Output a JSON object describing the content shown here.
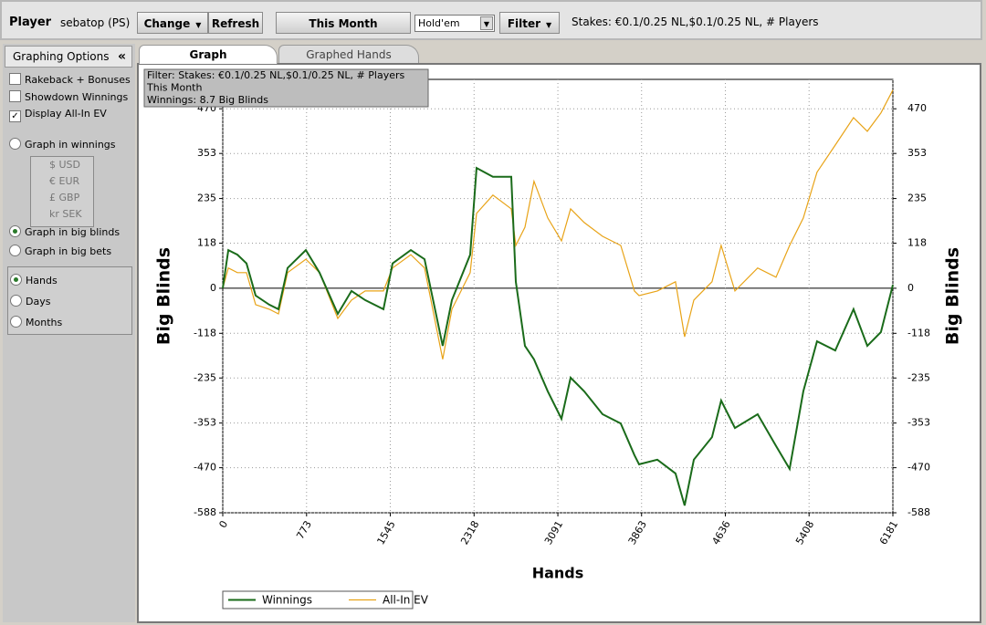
{
  "toolbar": {
    "player_label": "Player",
    "player": "sebatop (PS)",
    "change": "Change",
    "refresh": "Refresh",
    "period": "This Month",
    "game": "Hold'em",
    "filter": "Filter",
    "stakes": "Stakes: €0.1/0.25 NL,$0.1/0.25 NL, # Players"
  },
  "sidebar": {
    "title": "Graphing Options",
    "collapse": "«",
    "checkboxes": [
      {
        "label": "Rakeback + Bonuses",
        "checked": false
      },
      {
        "label": "Showdown Winnings",
        "checked": false
      },
      {
        "label": "Display All-In EV",
        "checked": true
      }
    ],
    "units": [
      {
        "label": "Graph in winnings",
        "checked": false
      },
      {
        "label": "Graph in big blinds",
        "checked": true
      },
      {
        "label": "Graph in big bets",
        "checked": false
      }
    ],
    "currencies": [
      "$ USD",
      "€ EUR",
      "£ GBP",
      "kr SEK"
    ],
    "axis_options": [
      {
        "label": "Hands",
        "checked": true
      },
      {
        "label": "Days",
        "checked": false
      },
      {
        "label": "Months",
        "checked": false
      }
    ]
  },
  "tabs": [
    {
      "label": "Graph",
      "active": true
    },
    {
      "label": "Graphed Hands",
      "active": false
    }
  ],
  "chart_data": {
    "type": "line",
    "annotation": [
      "Filter: Stakes: €0.1/0.25 NL,$0.1/0.25 NL, # Players",
      "This Month",
      "Winnings: 8.7 Big Blinds"
    ],
    "xlabel": "Hands",
    "ylabel": "Big Blinds",
    "y2label": "Big Blinds",
    "grid": true,
    "xlim": [
      0,
      6181
    ],
    "xticks": [
      0,
      773,
      1545,
      2318,
      3091,
      3863,
      4636,
      5408,
      6181
    ],
    "ylim": [
      -588,
      547
    ],
    "yticks": [
      -588,
      -470,
      -353,
      -235,
      -118,
      0,
      118,
      235,
      353,
      470
    ],
    "y2lim": [
      -588,
      547
    ],
    "y2ticks": [
      -588,
      -470,
      -353,
      -235,
      -118,
      0,
      118,
      235,
      353,
      470
    ],
    "x": [
      0,
      51,
      135,
      219,
      303,
      429,
      514,
      598,
      766,
      893,
      1061,
      1187,
      1314,
      1482,
      1566,
      1735,
      1861,
      2029,
      2114,
      2282,
      2341,
      2492,
      2661,
      2703,
      2787,
      2871,
      2998,
      3124,
      3208,
      3334,
      3503,
      3671,
      3797,
      3840,
      4008,
      4176,
      4260,
      4345,
      4513,
      4597,
      4724,
      4934,
      5103,
      5229,
      5355,
      5481,
      5650,
      5818,
      5945,
      6071,
      6181
    ],
    "series": [
      {
        "name": "Winnings",
        "color": "#1a6b1a",
        "values": [
          0,
          100,
          88,
          65,
          -19,
          -43,
          -55,
          53,
          100,
          41,
          -67,
          -7,
          -31,
          -55,
          65,
          100,
          76,
          -151,
          -31,
          88,
          315,
          292,
          292,
          17,
          -151,
          -186,
          -270,
          -342,
          -234,
          -270,
          -330,
          -354,
          -437,
          -461,
          -449,
          -485,
          -569,
          -449,
          -390,
          -294,
          -366,
          -330,
          -413,
          -473,
          -270,
          -139,
          -163,
          -55,
          -151,
          -115,
          8.7
        ]
      },
      {
        "name": "All-In EV",
        "color": "#e8a317",
        "values": [
          0,
          53,
          41,
          41,
          -43,
          -55,
          -67,
          41,
          76,
          41,
          -79,
          -31,
          -7,
          -7,
          53,
          88,
          53,
          -186,
          -55,
          41,
          196,
          244,
          208,
          112,
          160,
          280,
          184,
          124,
          208,
          172,
          136,
          112,
          -7,
          -19,
          -7,
          17,
          -127,
          -31,
          17,
          112,
          -7,
          53,
          29,
          112,
          184,
          304,
          375,
          447,
          411,
          459,
          519
        ]
      }
    ]
  }
}
